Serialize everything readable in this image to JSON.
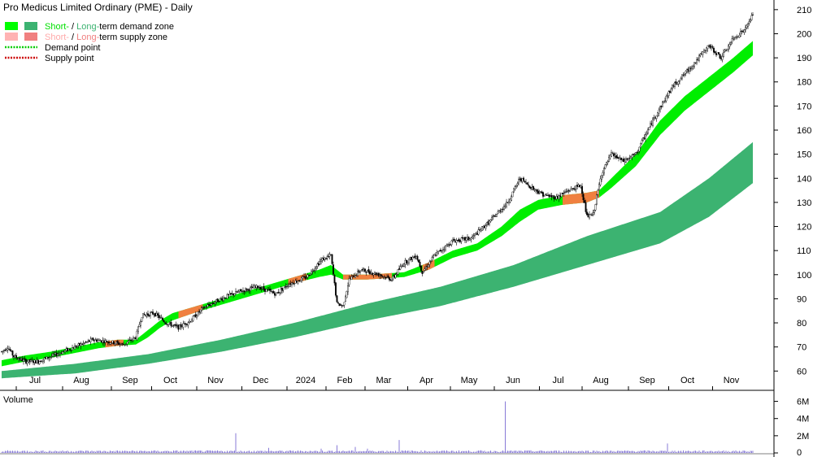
{
  "chart_data": {
    "type": "candlestick",
    "title": "Pro Medicus Limited Ordinary (PME) - Daily",
    "legend": [
      {
        "parts": [
          {
            "text": "Short-",
            "color": "#00e000"
          },
          {
            "text": " / ",
            "color": "#000000"
          },
          {
            "text": "Long-",
            "color": "#3cb371"
          },
          {
            "text": "term demand zone",
            "color": "#000000"
          }
        ],
        "swatches": [
          "#00ff00",
          "#3cb371"
        ]
      },
      {
        "parts": [
          {
            "text": "Short-",
            "color": "#ffaaaa"
          },
          {
            "text": " / ",
            "color": "#000000"
          },
          {
            "text": "Long-",
            "color": "#f08080"
          },
          {
            "text": "term supply zone",
            "color": "#000000"
          }
        ],
        "swatches": [
          "#ffb3b3",
          "#f08080"
        ]
      },
      {
        "parts": [
          {
            "text": "Demand point",
            "color": "#000000"
          }
        ],
        "line": "#00cc00"
      },
      {
        "parts": [
          {
            "text": "Supply point",
            "color": "#000000"
          }
        ],
        "line": "#cc0000"
      }
    ],
    "y_axis": {
      "min": 52,
      "max": 214,
      "ticks": [
        60,
        70,
        80,
        90,
        100,
        110,
        120,
        130,
        140,
        150,
        160,
        170,
        180,
        190,
        200,
        210
      ]
    },
    "x_axis": {
      "labels": [
        "Jul",
        "Aug",
        "Sep",
        "Oct",
        "Nov",
        "Dec",
        "2024",
        "Feb",
        "Mar",
        "Apr",
        "May",
        "Jun",
        "Jul",
        "Aug",
        "Sep",
        "Oct",
        "Nov"
      ]
    },
    "price_key_points": [
      [
        0,
        68
      ],
      [
        5,
        70
      ],
      [
        10,
        66
      ],
      [
        20,
        64
      ],
      [
        30,
        64
      ],
      [
        45,
        67
      ],
      [
        60,
        70
      ],
      [
        75,
        73
      ],
      [
        90,
        72
      ],
      [
        100,
        71
      ],
      [
        110,
        74
      ],
      [
        115,
        83
      ],
      [
        125,
        84
      ],
      [
        135,
        80
      ],
      [
        145,
        78
      ],
      [
        155,
        81
      ],
      [
        165,
        86
      ],
      [
        180,
        90
      ],
      [
        195,
        93
      ],
      [
        210,
        95
      ],
      [
        225,
        92
      ],
      [
        235,
        96
      ],
      [
        250,
        99
      ],
      [
        262,
        106
      ],
      [
        270,
        108
      ],
      [
        275,
        88
      ],
      [
        280,
        87
      ],
      [
        285,
        98
      ],
      [
        295,
        102
      ],
      [
        310,
        100
      ],
      [
        320,
        98
      ],
      [
        330,
        105
      ],
      [
        340,
        108
      ],
      [
        345,
        101
      ],
      [
        355,
        108
      ],
      [
        370,
        114
      ],
      [
        385,
        115
      ],
      [
        400,
        122
      ],
      [
        415,
        130
      ],
      [
        425,
        140
      ],
      [
        435,
        136
      ],
      [
        445,
        133
      ],
      [
        455,
        132
      ],
      [
        465,
        135
      ],
      [
        475,
        137
      ],
      [
        480,
        124
      ],
      [
        485,
        125
      ],
      [
        492,
        142
      ],
      [
        500,
        150
      ],
      [
        510,
        147
      ],
      [
        520,
        150
      ],
      [
        535,
        165
      ],
      [
        550,
        178
      ],
      [
        565,
        186
      ],
      [
        580,
        195
      ],
      [
        590,
        190
      ],
      [
        600,
        198
      ],
      [
        610,
        202
      ],
      [
        616,
        208
      ]
    ],
    "short_term_zone": {
      "upper_key_points": [
        [
          0,
          64.5
        ],
        [
          20,
          66.5
        ],
        [
          40,
          68
        ],
        [
          60,
          70
        ],
        [
          80,
          72
        ],
        [
          95,
          73
        ],
        [
          110,
          73
        ],
        [
          120,
          77
        ],
        [
          130,
          81
        ],
        [
          140,
          84
        ],
        [
          160,
          87
        ],
        [
          180,
          90
        ],
        [
          200,
          93
        ],
        [
          220,
          96
        ],
        [
          240,
          99
        ],
        [
          260,
          102
        ],
        [
          270,
          104
        ],
        [
          280,
          100
        ],
        [
          300,
          100
        ],
        [
          330,
          101
        ],
        [
          350,
          105
        ],
        [
          370,
          110
        ],
        [
          390,
          113
        ],
        [
          410,
          120
        ],
        [
          425,
          127
        ],
        [
          440,
          131
        ],
        [
          460,
          133
        ],
        [
          480,
          134
        ],
        [
          490,
          135
        ],
        [
          500,
          140
        ],
        [
          520,
          150
        ],
        [
          540,
          164
        ],
        [
          560,
          174
        ],
        [
          580,
          182
        ],
        [
          600,
          190
        ],
        [
          616,
          197
        ]
      ],
      "lower_key_points": [
        [
          0,
          62
        ],
        [
          20,
          64
        ],
        [
          40,
          65.5
        ],
        [
          60,
          67.5
        ],
        [
          80,
          69.5
        ],
        [
          95,
          70.5
        ],
        [
          110,
          71
        ],
        [
          120,
          74
        ],
        [
          130,
          78
        ],
        [
          140,
          81
        ],
        [
          160,
          84.5
        ],
        [
          180,
          87.5
        ],
        [
          200,
          90.5
        ],
        [
          220,
          93.5
        ],
        [
          240,
          96.5
        ],
        [
          260,
          99
        ],
        [
          270,
          100
        ],
        [
          280,
          98
        ],
        [
          300,
          98
        ],
        [
          330,
          99
        ],
        [
          350,
          102
        ],
        [
          370,
          107
        ],
        [
          390,
          110
        ],
        [
          410,
          116
        ],
        [
          425,
          122
        ],
        [
          440,
          127
        ],
        [
          460,
          129
        ],
        [
          480,
          130
        ],
        [
          490,
          132
        ],
        [
          500,
          136
        ],
        [
          520,
          145
        ],
        [
          540,
          158
        ],
        [
          560,
          168
        ],
        [
          580,
          176
        ],
        [
          600,
          184
        ],
        [
          616,
          191
        ]
      ],
      "supply_segments": [
        [
          85,
          100
        ],
        [
          145,
          165
        ],
        [
          235,
          250
        ],
        [
          280,
          320
        ],
        [
          345,
          355
        ],
        [
          460,
          490
        ]
      ]
    },
    "long_term_zone": {
      "upper_key_points": [
        [
          0,
          60
        ],
        [
          60,
          63
        ],
        [
          120,
          67
        ],
        [
          180,
          73
        ],
        [
          240,
          80
        ],
        [
          300,
          88
        ],
        [
          360,
          95
        ],
        [
          420,
          104
        ],
        [
          480,
          116
        ],
        [
          540,
          126
        ],
        [
          580,
          140
        ],
        [
          616,
          155
        ]
      ],
      "lower_key_points": [
        [
          0,
          57
        ],
        [
          60,
          59
        ],
        [
          120,
          63
        ],
        [
          180,
          68
        ],
        [
          240,
          74
        ],
        [
          300,
          81
        ],
        [
          360,
          87
        ],
        [
          420,
          95
        ],
        [
          480,
          104
        ],
        [
          540,
          113
        ],
        [
          580,
          124
        ],
        [
          616,
          138
        ]
      ]
    },
    "volume": {
      "label": "Volume",
      "ticks": [
        "0",
        "2M",
        "4M",
        "6M"
      ],
      "max": 7000000,
      "baseline": 200000,
      "spikes": [
        [
          192,
          2300000
        ],
        [
          219,
          600000
        ],
        [
          262,
          500000
        ],
        [
          275,
          900000
        ],
        [
          290,
          700000
        ],
        [
          300,
          500000
        ],
        [
          326,
          1500000
        ],
        [
          413,
          6000000
        ],
        [
          546,
          1100000
        ]
      ]
    },
    "colors": {
      "short_demand": "#00ee00",
      "long_demand": "#3cb371",
      "supply": "#f08040",
      "candle": "#000000",
      "volume": "#6a5acd",
      "axis_text": "#000000"
    }
  }
}
